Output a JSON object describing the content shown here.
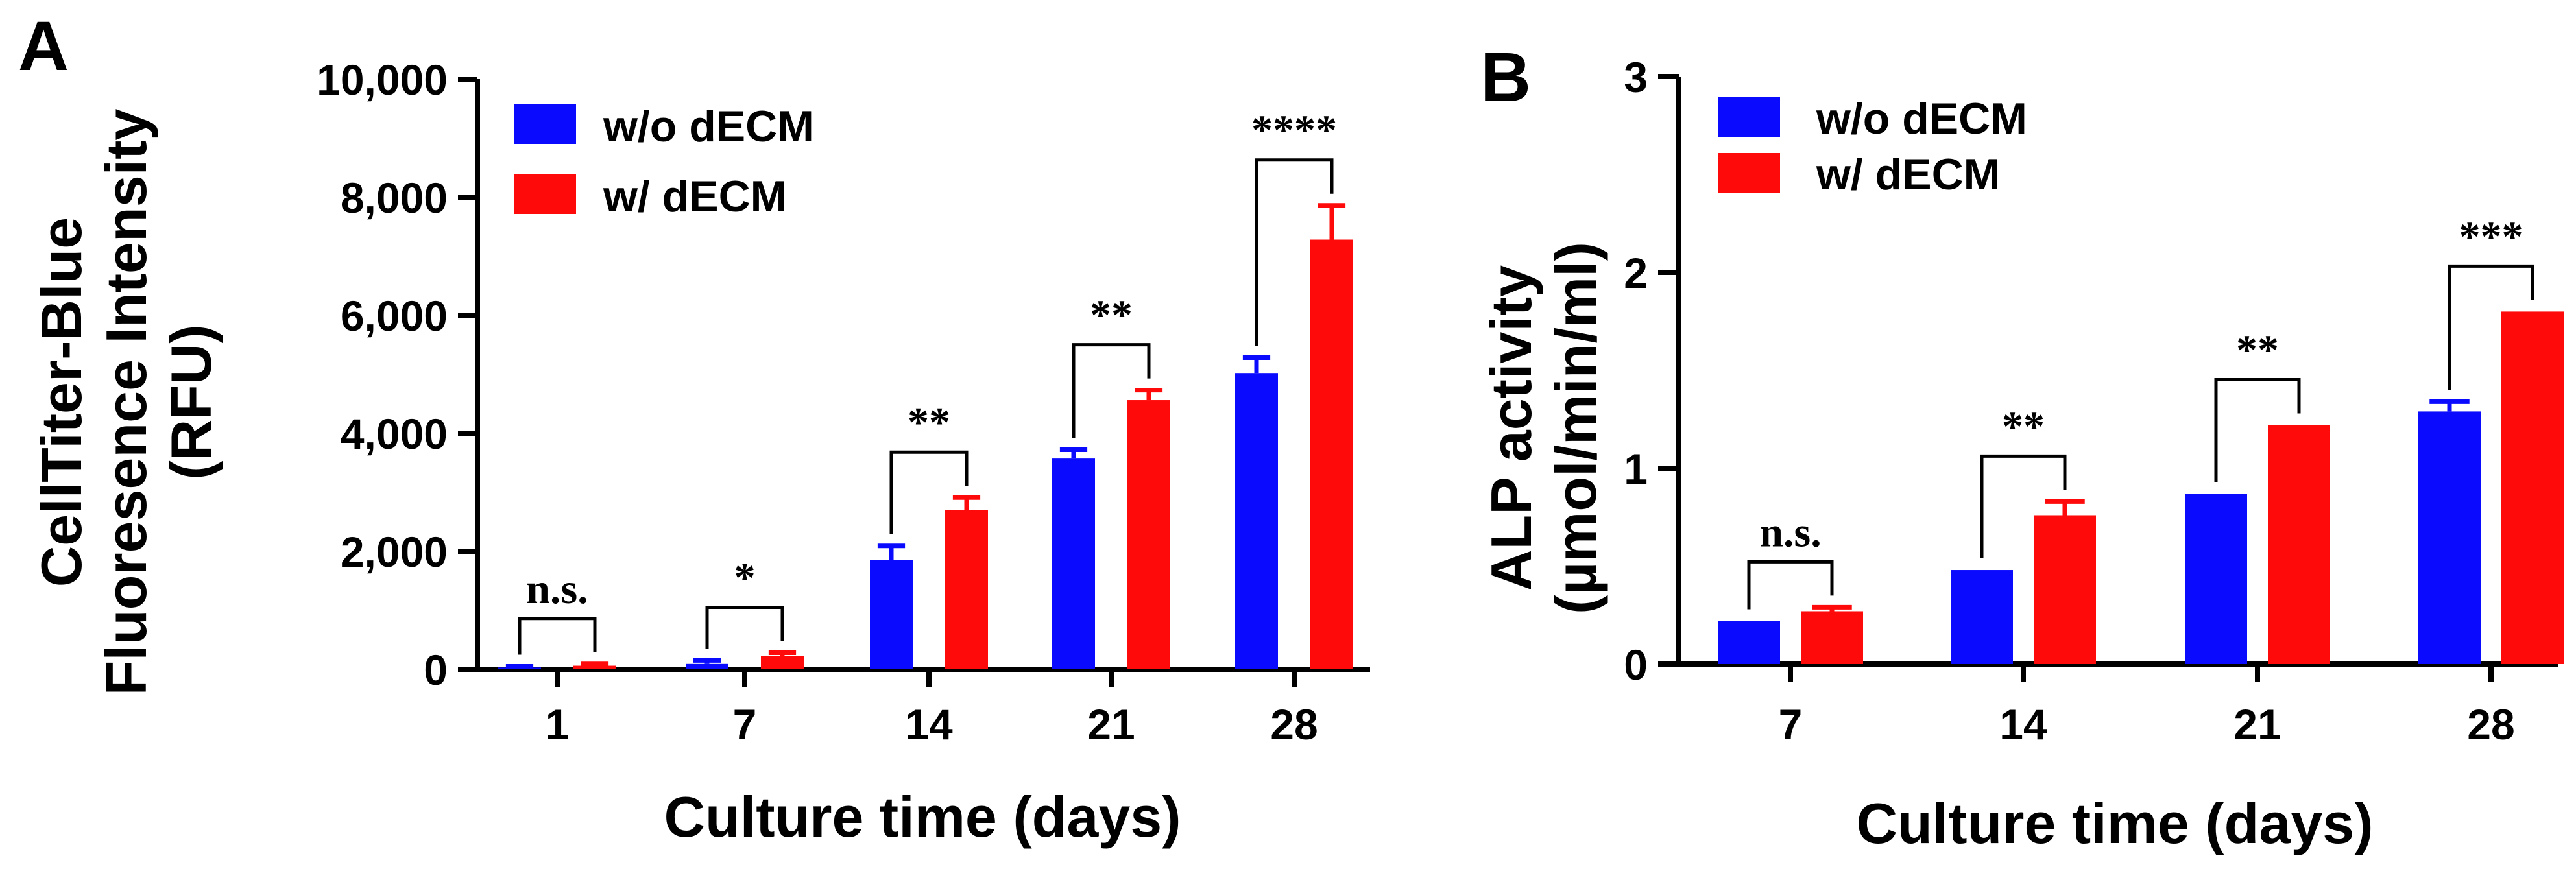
{
  "colors": {
    "series_without": "#0a0aff",
    "series_with": "#ff0a0a"
  },
  "chart_data": [
    {
      "panel": "A",
      "type": "bar",
      "title": "",
      "xlabel": "Culture time (days)",
      "ylabel_lines": [
        "CellTiter-Blue",
        "Fluoresence Intensity",
        "(RFU)"
      ],
      "categories": [
        "1",
        "7",
        "14",
        "21",
        "28"
      ],
      "ylim": [
        0,
        10000
      ],
      "yticks": [
        0,
        2000,
        4000,
        6000,
        8000,
        10000
      ],
      "ytick_labels": [
        "0",
        "2,000",
        "4,000",
        "6,000",
        "8,000",
        "10,000"
      ],
      "grid": false,
      "legend_position": "top-left",
      "series": [
        {
          "name": "w/o dECM",
          "color": "#0a0aff",
          "values": [
            30,
            90,
            1850,
            3570,
            5020
          ],
          "errors": [
            20,
            60,
            240,
            150,
            260
          ]
        },
        {
          "name": "w/ dECM",
          "color": "#ff0a0a",
          "values": [
            60,
            220,
            2700,
            4560,
            7280
          ],
          "errors": [
            30,
            60,
            210,
            170,
            580
          ]
        }
      ],
      "significance": [
        "n.s.",
        "*",
        "**",
        "**",
        "****"
      ]
    },
    {
      "panel": "B",
      "type": "bar",
      "title": "",
      "xlabel": "Culture time (days)",
      "ylabel_lines": [
        "ALP activity",
        "(µmol/min/ml)"
      ],
      "categories": [
        "7",
        "14",
        "21",
        "28"
      ],
      "ylim": [
        0,
        3
      ],
      "yticks": [
        0,
        1,
        2,
        3
      ],
      "ytick_labels": [
        "0",
        "1",
        "2",
        "3"
      ],
      "grid": false,
      "legend_position": "top-left",
      "series": [
        {
          "name": "w/o dECM",
          "color": "#0a0aff",
          "values": [
            0.22,
            0.48,
            0.87,
            1.29
          ],
          "errors": [
            0,
            0,
            0,
            0.05
          ]
        },
        {
          "name": "w/ dECM",
          "color": "#ff0a0a",
          "values": [
            0.27,
            0.76,
            1.22,
            1.8
          ],
          "errors": [
            0.02,
            0.07,
            0,
            0
          ]
        }
      ],
      "significance": [
        "n.s.",
        "**",
        "**",
        "***"
      ]
    }
  ]
}
